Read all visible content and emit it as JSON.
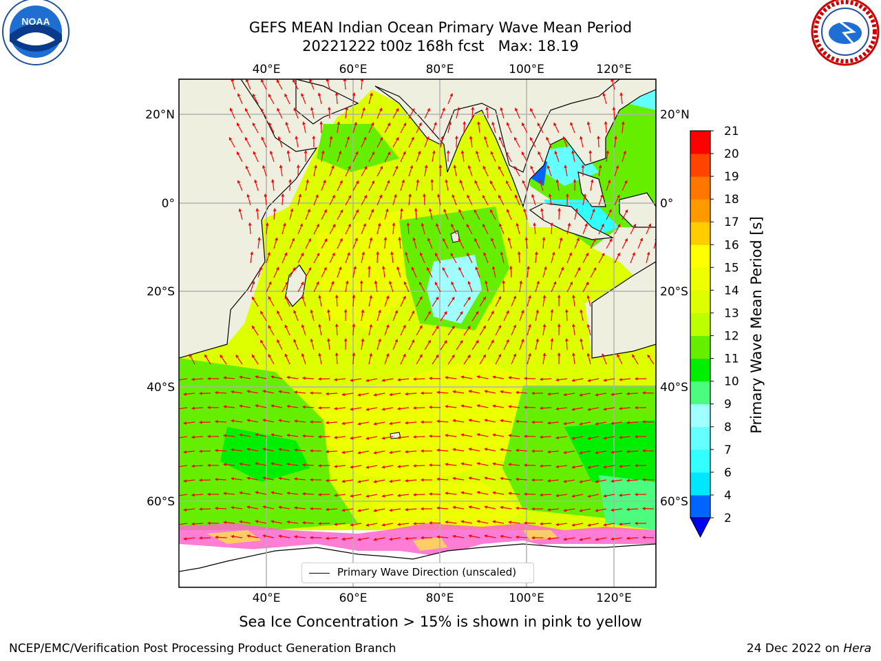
{
  "title": {
    "line1": "GEFS MEAN Indian Ocean Primary Wave Mean Period",
    "line2": "20221222 t00z 168h fcst   Max: 18.19"
  },
  "logos": {
    "left": {
      "text": "NOAA",
      "icon": "noaa-logo"
    },
    "right": {
      "icon": "national-weather-service-logo"
    }
  },
  "map": {
    "lon_labels": [
      "40°E",
      "60°E",
      "80°E",
      "100°E",
      "120°E"
    ],
    "lat_labels": [
      "20°N",
      "0°",
      "20°S",
      "40°S",
      "60°S"
    ],
    "legend_label": "Primary Wave Direction (unscaled)"
  },
  "colorbar": {
    "title": "Primary Wave Mean Period [s]",
    "ticks": [
      "2",
      "4",
      "6",
      "7",
      "8",
      "9",
      "10",
      "11",
      "12",
      "13",
      "14",
      "15",
      "16",
      "17",
      "18",
      "19",
      "20",
      "21"
    ],
    "colors": [
      "#0064ff",
      "#00e6ff",
      "#32ffff",
      "#64ffff",
      "#a0ffff",
      "#4cfc7e",
      "#00ee00",
      "#66ee00",
      "#bbff00",
      "#ddff00",
      "#eeff00",
      "#ffff00",
      "#ffcc00",
      "#ff9900",
      "#ff7700",
      "#ff4400",
      "#ff0000"
    ],
    "extend_color": "#0000ee"
  },
  "subtitle": "Sea Ice Concentration > 15% is shown in pink to yellow",
  "footer": {
    "left": "NCEP/EMC/Verification Post Processing Product Generation Branch",
    "date": "24 Dec 2022 on ",
    "machine": "Hera"
  }
}
